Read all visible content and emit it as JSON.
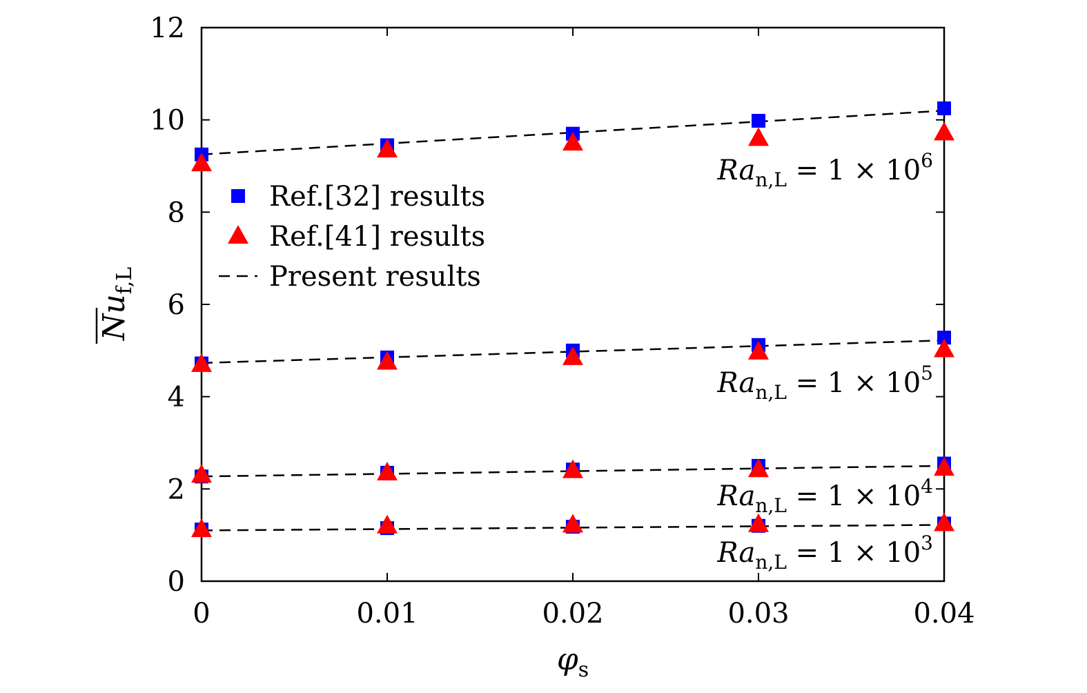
{
  "chart_data": {
    "type": "scatter",
    "x": [
      0,
      0.01,
      0.02,
      0.03,
      0.04
    ],
    "x_tick_labels": [
      "0",
      "0.01",
      "0.02",
      "0.03",
      "0.04"
    ],
    "y_tick_labels": [
      "0",
      "2",
      "4",
      "6",
      "8",
      "10",
      "12"
    ],
    "y_ticks": [
      0,
      2,
      4,
      6,
      8,
      10,
      12
    ],
    "xlim": [
      0,
      0.04
    ],
    "ylim": [
      0,
      12
    ],
    "xlabel": {
      "main": "φ",
      "sub": "s"
    },
    "ylabel": {
      "main": "Nu",
      "sub": "f,L",
      "overline": true
    },
    "grid": false,
    "legend_position": "left, upper-middle",
    "legend": [
      {
        "label": "Ref.[32] results",
        "marker": "square",
        "color": "#0000ff"
      },
      {
        "label": "Ref.[41] results",
        "marker": "triangle",
        "color": "#ff0000"
      },
      {
        "label": "Present results",
        "marker": "dashed-line",
        "color": "#000000"
      }
    ],
    "groups": [
      {
        "annotation": {
          "main": "Ra",
          "sub": "n,L",
          "rest": " = 1 × 10",
          "exp": "6"
        },
        "ref32": [
          9.25,
          9.45,
          9.7,
          9.98,
          10.25
        ],
        "ref41": [
          9.05,
          9.35,
          9.5,
          9.6,
          9.72
        ],
        "present": [
          9.25,
          10.2
        ]
      },
      {
        "annotation": {
          "main": "Ra",
          "sub": "n,L",
          "rest": " = 1 × 10",
          "exp": "5"
        },
        "ref32": [
          4.72,
          4.85,
          5.0,
          5.12,
          5.28
        ],
        "ref41": [
          4.7,
          4.75,
          4.85,
          4.97,
          5.02
        ],
        "present": [
          4.73,
          5.22
        ]
      },
      {
        "annotation": {
          "main": "Ra",
          "sub": "n,L",
          "rest": " = 1 × 10",
          "exp": "4"
        },
        "ref32": [
          2.27,
          2.35,
          2.42,
          2.5,
          2.55
        ],
        "ref41": [
          2.3,
          2.35,
          2.4,
          2.42,
          2.45
        ],
        "present": [
          2.27,
          2.5
        ]
      },
      {
        "annotation": {
          "main": "Ra",
          "sub": "n,L",
          "rest": " = 1 × 10",
          "exp": "3"
        },
        "ref32": [
          1.12,
          1.15,
          1.18,
          1.2,
          1.25
        ],
        "ref41": [
          1.12,
          1.2,
          1.22,
          1.23,
          1.25
        ],
        "present": [
          1.1,
          1.22
        ]
      }
    ],
    "colors": {
      "ref32": "#0000ff",
      "ref41": "#ff0000",
      "present": "#000000"
    }
  }
}
